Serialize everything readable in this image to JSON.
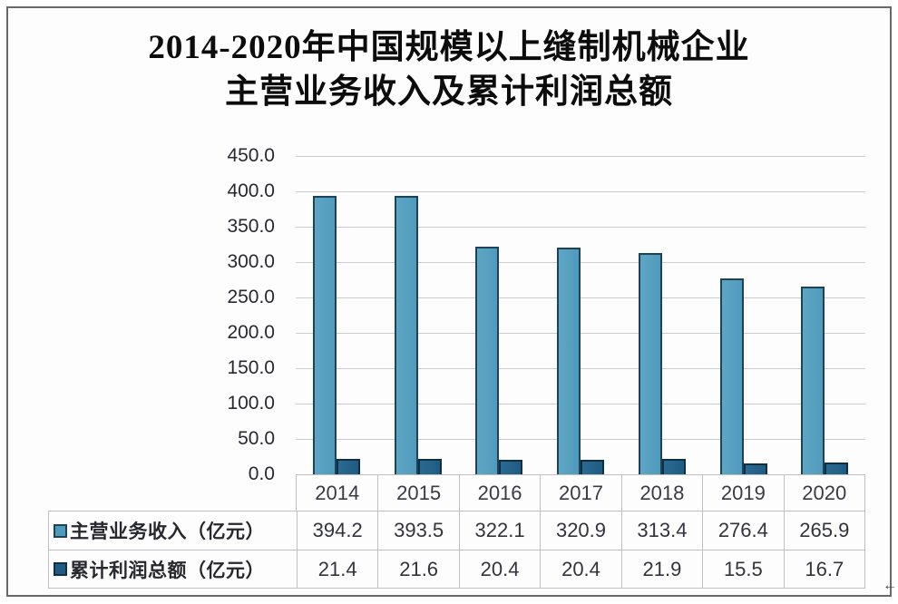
{
  "title": {
    "line1": "2014-2020年中国规模以上缝制机械企业",
    "line2": "主营业务收入及累计利润总额"
  },
  "chart_data": {
    "type": "bar",
    "title": "2014-2020年中国规模以上缝制机械企业主营业务收入及累计利润总额",
    "categories": [
      "2014",
      "2015",
      "2016",
      "2017",
      "2018",
      "2019",
      "2020"
    ],
    "series": [
      {
        "key": "revenue",
        "name": "主营业务收入（亿元）",
        "values": [
          394.2,
          393.5,
          322.1,
          320.9,
          313.4,
          276.4,
          265.9
        ],
        "fill": "#4f9abd",
        "fill_light": "#5ea6c4",
        "border": "#1e4257"
      },
      {
        "key": "profit",
        "name": "累计利润总额（亿元）",
        "values": [
          21.4,
          21.6,
          20.4,
          20.4,
          21.9,
          15.5,
          16.7
        ],
        "fill": "#1f5b82",
        "fill_light": "#2a6a92",
        "border": "#0f2f44"
      }
    ],
    "y_axis": {
      "min": 0,
      "max": 450,
      "step": 50,
      "tick_labels": [
        "450.0",
        "400.0",
        "350.0",
        "300.0",
        "250.0",
        "200.0",
        "150.0",
        "100.0",
        "50.0",
        "0.0"
      ]
    },
    "grid": true,
    "legend_position": "bottom-table-with-values"
  },
  "colors": {
    "gridline": "#cbcbd1",
    "axis_line": "#b2b2ba",
    "table_border": "#bfbfc4",
    "frame_border": "#68686c",
    "tick_text": "#28282f",
    "table_text": "#33333c",
    "title_text": "#0c0c0c"
  },
  "corner_mark": "←"
}
